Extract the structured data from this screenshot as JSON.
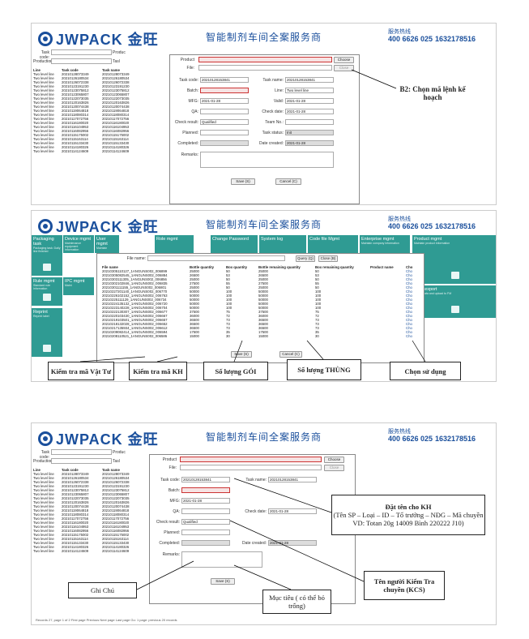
{
  "brand": {
    "logo_text": "JWPACK 金旺",
    "slogan": "智能制剂车间全案服务商",
    "phone_caption": "服务热线",
    "phone1": "400 6626 025",
    "phone2": "1632178516"
  },
  "screen1": {
    "filter": {
      "task_code_label": "Task code:",
      "product_label": "Produc",
      "production_label": "Production",
      "task_label": "Tasl"
    },
    "list": {
      "headers": [
        "Line",
        "Task code",
        "Task name"
      ],
      "rows": [
        [
          "Two level line",
          "20210128073349",
          "20210128073349"
        ],
        [
          "Two level line",
          "20210126180534",
          "20210126180534"
        ],
        [
          "Two level line",
          "20210126072338",
          "20210126072338"
        ],
        [
          "Two level line",
          "20210123191230",
          "20210123191230"
        ],
        [
          "Two level line",
          "20210123075812",
          "20210123075812"
        ],
        [
          "Two level line",
          "20210123065807",
          "20210123065807"
        ],
        [
          "Two level line",
          "20210122073035",
          "20210122073035"
        ],
        [
          "Two level line",
          "20210120163826",
          "20210120163826"
        ],
        [
          "Two level line",
          "20210120074438",
          "20210120074438"
        ],
        [
          "Two level line",
          "20210119064818",
          "20210119064818"
        ],
        [
          "Two level line",
          "20210118080314",
          "20210118080314"
        ],
        [
          "Two level line",
          "20210117072756",
          "20210117072756"
        ],
        [
          "Two level line",
          "20210116180020",
          "20210116180020"
        ],
        [
          "Two level line",
          "20210116104953",
          "20210116104953"
        ],
        [
          "Two level line",
          "20210116082956",
          "20210116082956"
        ],
        [
          "Two level line",
          "20210115175002",
          "20210115175002"
        ],
        [
          "Two level line",
          "20210115163114",
          "20210115163114"
        ],
        [
          "Two level line",
          "20210115133430",
          "20210115133430"
        ],
        [
          "Two level line",
          "20210114180326",
          "20210114180326"
        ],
        [
          "Two level line",
          "20210114124609",
          "20210114124609"
        ]
      ]
    },
    "form": {
      "product_label": "Product",
      "file_label": "File:",
      "choose_btn": "Choose",
      "close_btn": "Close",
      "task_code_label": "Task code:",
      "task_code_value": "20210128153841",
      "task_name_label": "Task name:",
      "task_name_value": "20210128153841",
      "batch_label": "Batch:",
      "line_label": "Line:",
      "line_value": "Two level line",
      "mfg_label": "MFG:",
      "mfg_value": "2021-01-28",
      "valid_label": "Valid:",
      "valid_value": "2021-01-28",
      "qa_label": "QA:",
      "check_date_label": "Check date:",
      "check_date_value": "2021-01-28",
      "check_result_label": "Check result:",
      "check_result_value": "Qualified",
      "team_label": "Team No.:",
      "planned_label": "Planned:",
      "task_status_label": "Task status:",
      "task_status_value": "Init",
      "completed_label": "Completed:",
      "date_created_label": "Date created:",
      "date_created_value": "2021-01-28",
      "remarks_label": "Remarks:",
      "save_btn": "Save (S)",
      "cancel_btn": "Cancel (C)"
    },
    "callout": "B2: Chọn mã lệnh kế hoạch"
  },
  "screen2": {
    "tiles": [
      {
        "title": "Packaging task",
        "sub": "Packaging task: Daily line finished"
      },
      {
        "title": "Device mgmt",
        "sub": "Maintenance equipment information"
      },
      {
        "title": "User mgmt",
        "sub": "Maintain"
      },
      {
        "title": "Role mgmt",
        "sub": ""
      },
      {
        "title": "Change Password",
        "sub": ""
      },
      {
        "title": "System log",
        "sub": ""
      },
      {
        "title": "Code file Mgmt",
        "sub": ""
      },
      {
        "title": "Enterprise mgmt",
        "sub": "Maintain company information"
      },
      {
        "title": "Product mgmt",
        "sub": "Maintain product information"
      },
      {
        "title": "Rule mgmt",
        "sub": "Standard rule information"
      },
      {
        "title": "IPC mgmt",
        "sub": "Maint"
      },
      {
        "title": "Data export",
        "sub": "Export data and upload to FM"
      },
      {
        "title": "Reprint",
        "sub": "Reprint label"
      }
    ],
    "file_name_label": "File name:",
    "query_btn": "Query (Q)",
    "close_btn": "Close (B)",
    "headers": [
      "File name",
      "Bottle quantity",
      "Box quantity",
      "Bottle remaining quantity",
      "Box remaining quantity",
      "Product name",
      "Cho"
    ],
    "rows": [
      [
        "20210305110127_1ANGUNS002_006899",
        "25000",
        "50",
        "25000",
        "50",
        "",
        "Cho"
      ],
      [
        "20210305082545_1ANGUNS002_006884",
        "26500",
        "53",
        "26500",
        "53",
        "",
        "Cho"
      ],
      [
        "20210303111305_1ANGUNS002_006856",
        "25000",
        "50",
        "25000",
        "50",
        "",
        "Cho"
      ],
      [
        "20210302102846_1ANGUNS002_006835",
        "27500",
        "55",
        "27500",
        "55",
        "",
        "Cho"
      ],
      [
        "20210301111155_1ANGUNS002_006801",
        "25000",
        "50",
        "25000",
        "50",
        "",
        "Cho"
      ],
      [
        "20210227201140_1ANGUNS002_006770",
        "50000",
        "100",
        "50000",
        "100",
        "",
        "Cho"
      ],
      [
        "20210226102152_1ANGUNS002_006763",
        "50000",
        "100",
        "50000",
        "100",
        "",
        "Cho"
      ],
      [
        "20210225111129_1ANGUNS002_006734",
        "50000",
        "100",
        "50000",
        "100",
        "",
        "Cho"
      ],
      [
        "20210224135132_1ANGUNS002_006720",
        "50000",
        "100",
        "50000",
        "100",
        "",
        "Cho"
      ],
      [
        "20210223140228_1ANGUNS002_006704",
        "50000",
        "100",
        "50000",
        "100",
        "",
        "Cho"
      ],
      [
        "20210222130307_1ANGUNS002_006677",
        "37500",
        "75",
        "37500",
        "75",
        "",
        "Cho"
      ],
      [
        "20210220103430_1ANGUNS002_006667",
        "36000",
        "72",
        "36000",
        "72",
        "",
        "Cho"
      ],
      [
        "20210219103501_1ANGUNS002_006657",
        "36500",
        "73",
        "36500",
        "73",
        "",
        "Cho"
      ],
      [
        "20210218132028_1ANGUNS002_006652",
        "36500",
        "73",
        "36500",
        "73",
        "",
        "Cho"
      ],
      [
        "20210217135934_1ANGUNS002_006612",
        "36500",
        "73",
        "36500",
        "73",
        "",
        "Cho"
      ],
      [
        "20210209082414_1ANGUNS002_006594",
        "17500",
        "35",
        "17500",
        "35",
        "",
        "Cho"
      ],
      [
        "20210208110521_1ANGUNS002_006586",
        "15000",
        "30",
        "15000",
        "30",
        "",
        "Cho"
      ]
    ],
    "save_btn": "Save (S)",
    "cancel_btn": "Cancel (C)",
    "callouts": {
      "material": "Kiểm tra mã Vật Tư",
      "kh": "Kiểm tra mã KH",
      "goi": "Số lượng GÓI",
      "thung": "Số lượng THÙNG",
      "chon": "Chọn sử dụng"
    }
  },
  "screen3": {
    "callouts": {
      "name_title": "Đặt tên cho KH",
      "name_body": "(Tên SP – Loại – ID – Tổ trưởng – NĐG – Mã chuyền",
      "name_example": "VD: Totan 20g 14009 Bình 220222 J10)",
      "kcs": "Tên người Kiểm Tra chuyền (KCS)",
      "target": "Mục tiêu ( có thể bỏ trống)",
      "note": "Ghi Chú"
    },
    "status": "Records 27, page 1 of 2   First page   Previous   Next page   Last page   Go: 1       page: previous 20       records"
  }
}
